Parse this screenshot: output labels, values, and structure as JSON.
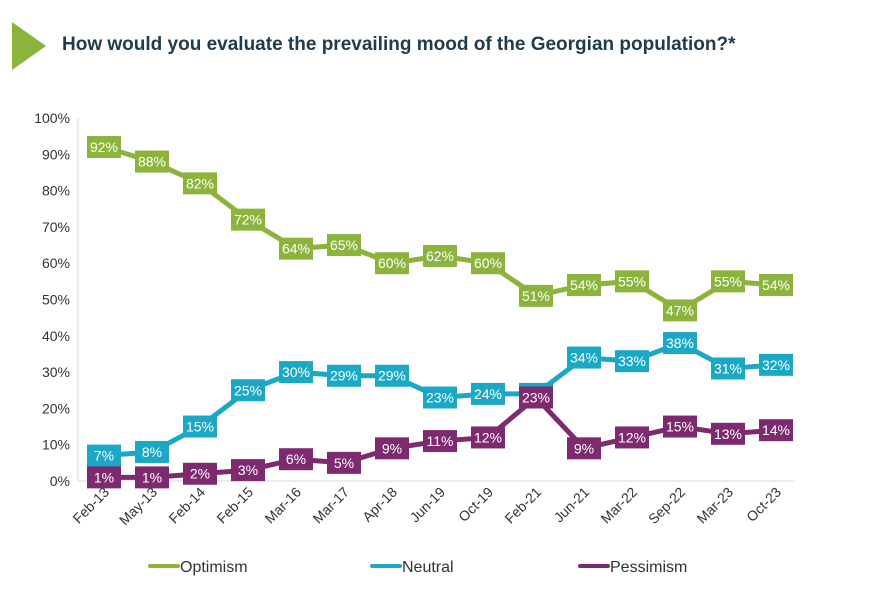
{
  "title": "How would you evaluate the prevailing mood of the Georgian population?*",
  "chart_data": {
    "type": "line",
    "categories": [
      "Feb-13",
      "May-13",
      "Feb-14",
      "Feb-15",
      "Mar-16",
      "Mar-17",
      "Apr-18",
      "Jun-19",
      "Oct-19",
      "Feb-21",
      "Jun-21",
      "Mar-22",
      "Sep-22",
      "Mar-23",
      "Oct-23"
    ],
    "ylim": [
      0,
      100
    ],
    "yticks": [
      "0%",
      "10%",
      "20%",
      "30%",
      "40%",
      "50%",
      "60%",
      "70%",
      "80%",
      "90%",
      "100%"
    ],
    "grid": false,
    "legend_position": "bottom",
    "series": [
      {
        "name": "Optimism",
        "color": "#8cb43c",
        "values": [
          92,
          88,
          82,
          72,
          64,
          65,
          60,
          62,
          60,
          51,
          54,
          55,
          47,
          55,
          54
        ]
      },
      {
        "name": "Neutral",
        "color": "#1aa8c4",
        "values": [
          7,
          8,
          15,
          25,
          30,
          29,
          29,
          23,
          24,
          24,
          34,
          33,
          38,
          31,
          32
        ]
      },
      {
        "name": "Pessimism",
        "color": "#7d2a6e",
        "values": [
          1,
          1,
          2,
          3,
          6,
          5,
          9,
          11,
          12,
          23,
          9,
          12,
          15,
          13,
          14
        ]
      }
    ]
  }
}
